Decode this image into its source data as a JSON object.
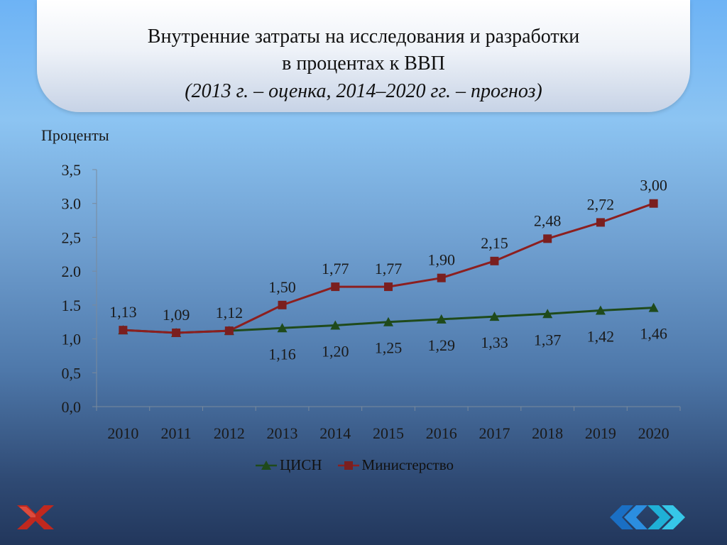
{
  "title": {
    "line1": "Внутренние затраты на исследования и разработки",
    "line2": "в процентах к ВВП",
    "line3": "(2013 г. – оценка, 2014–2020 гг. – прогноз)"
  },
  "colors": {
    "series_cisn": "#1f4a1b",
    "series_ministry": "#8c1f1f",
    "marker_ministry": "#7a1f1f"
  },
  "icons": {
    "left": "close-x-icon",
    "right": "double-chevron-icons"
  },
  "chart_data": {
    "type": "line",
    "title": "",
    "xlabel": "",
    "ylabel": "Проценты",
    "ylim": [
      0,
      3.5
    ],
    "yticks": [
      "0,0",
      "0,5",
      "1,0",
      "1.5",
      "2.0",
      "2,5",
      "3.0",
      "3,5"
    ],
    "ytick_values": [
      0,
      0.5,
      1.0,
      1.5,
      2.0,
      2.5,
      3.0,
      3.5
    ],
    "categories": [
      "2010",
      "2011",
      "2012",
      "2013",
      "2014",
      "2015",
      "2016",
      "2017",
      "2018",
      "2019",
      "2020"
    ],
    "legend_position": "bottom",
    "grid": false,
    "series": [
      {
        "name": "ЦИСН",
        "marker": "triangle",
        "values": [
          1.13,
          1.09,
          1.12,
          1.16,
          1.2,
          1.25,
          1.29,
          1.33,
          1.37,
          1.42,
          1.46
        ],
        "labels": [
          "",
          "",
          "",
          "1,16",
          "1,20",
          "1,25",
          "1,29",
          "1,33",
          "1,37",
          "1,42",
          "1,46"
        ]
      },
      {
        "name": "Министерство",
        "marker": "square",
        "values": [
          1.13,
          1.09,
          1.12,
          1.5,
          1.77,
          1.77,
          1.9,
          2.15,
          2.48,
          2.72,
          3.0
        ],
        "labels": [
          "1,13",
          "1,09",
          "1,12",
          "1,50",
          "1,77",
          "1,77",
          "1,90",
          "2,15",
          "2,48",
          "2,72",
          "3,00"
        ]
      }
    ]
  }
}
